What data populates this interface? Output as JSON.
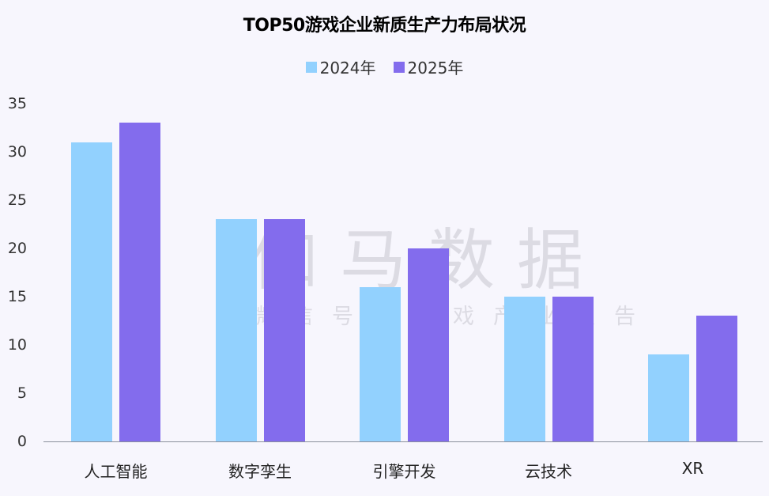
{
  "chart_data": {
    "type": "bar",
    "title": "TOP50游戏企业新质生产力布局状况",
    "categories": [
      "人工智能",
      "数字孪生",
      "引擎开发",
      "云技术",
      "XR"
    ],
    "series": [
      {
        "name": "2024年",
        "color": "#92d1fe",
        "values": [
          31,
          23,
          16,
          15,
          9
        ]
      },
      {
        "name": "2025年",
        "color": "#836ced",
        "values": [
          33,
          23,
          20,
          15,
          13
        ]
      }
    ],
    "xlabel": "",
    "ylabel": "",
    "ylim": [
      0,
      35
    ],
    "yticks": [
      0,
      5,
      10,
      15,
      20,
      25,
      30,
      35
    ],
    "grid": false,
    "legend_position": "top"
  },
  "watermark": {
    "main": "伽马数据",
    "sub": "微信号：游戏产业报告"
  }
}
